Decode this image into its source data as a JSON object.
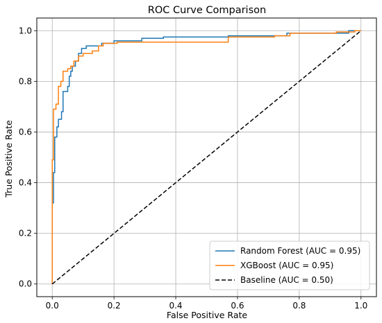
{
  "chart_data": {
    "type": "line",
    "title": "ROC Curve Comparison",
    "xlabel": "False Positive Rate",
    "ylabel": "True Positive Rate",
    "xlim": [
      -0.05,
      1.05
    ],
    "ylim": [
      -0.05,
      1.05
    ],
    "x_ticks": [
      "0.0",
      "0.2",
      "0.4",
      "0.6",
      "0.8",
      "1.0"
    ],
    "y_ticks": [
      "0.0",
      "0.2",
      "0.4",
      "0.6",
      "0.8",
      "1.0"
    ],
    "grid": true,
    "legend_position": "lower-right",
    "series": [
      {
        "name": "Random Forest (AUC = 0.95)",
        "color": "#1f77b4",
        "style": "solid",
        "points": [
          [
            0.0,
            0.0
          ],
          [
            0.0,
            0.32
          ],
          [
            0.004,
            0.32
          ],
          [
            0.004,
            0.44
          ],
          [
            0.008,
            0.44
          ],
          [
            0.008,
            0.58
          ],
          [
            0.015,
            0.58
          ],
          [
            0.015,
            0.62
          ],
          [
            0.02,
            0.62
          ],
          [
            0.02,
            0.65
          ],
          [
            0.03,
            0.65
          ],
          [
            0.03,
            0.68
          ],
          [
            0.035,
            0.68
          ],
          [
            0.035,
            0.76
          ],
          [
            0.05,
            0.76
          ],
          [
            0.05,
            0.78
          ],
          [
            0.055,
            0.78
          ],
          [
            0.055,
            0.82
          ],
          [
            0.06,
            0.82
          ],
          [
            0.06,
            0.84
          ],
          [
            0.065,
            0.84
          ],
          [
            0.065,
            0.86
          ],
          [
            0.075,
            0.86
          ],
          [
            0.075,
            0.88
          ],
          [
            0.085,
            0.88
          ],
          [
            0.085,
            0.91
          ],
          [
            0.095,
            0.91
          ],
          [
            0.095,
            0.93
          ],
          [
            0.11,
            0.93
          ],
          [
            0.11,
            0.94
          ],
          [
            0.16,
            0.94
          ],
          [
            0.16,
            0.95
          ],
          [
            0.2,
            0.95
          ],
          [
            0.2,
            0.96
          ],
          [
            0.29,
            0.96
          ],
          [
            0.29,
            0.97
          ],
          [
            0.36,
            0.97
          ],
          [
            0.36,
            0.975
          ],
          [
            0.57,
            0.975
          ],
          [
            0.57,
            0.98
          ],
          [
            0.69,
            0.98
          ],
          [
            0.69,
            0.98
          ],
          [
            0.76,
            0.98
          ],
          [
            0.76,
            0.99
          ],
          [
            0.96,
            0.99
          ],
          [
            0.96,
            1.0
          ],
          [
            1.0,
            1.0
          ]
        ]
      },
      {
        "name": "XGBoost (AUC = 0.95)",
        "color": "#ff7f0e",
        "style": "solid",
        "points": [
          [
            0.0,
            0.0
          ],
          [
            0.0,
            0.49
          ],
          [
            0.004,
            0.49
          ],
          [
            0.004,
            0.69
          ],
          [
            0.012,
            0.69
          ],
          [
            0.012,
            0.71
          ],
          [
            0.02,
            0.71
          ],
          [
            0.02,
            0.78
          ],
          [
            0.028,
            0.78
          ],
          [
            0.028,
            0.8
          ],
          [
            0.035,
            0.8
          ],
          [
            0.035,
            0.84
          ],
          [
            0.05,
            0.84
          ],
          [
            0.05,
            0.85
          ],
          [
            0.06,
            0.85
          ],
          [
            0.06,
            0.86
          ],
          [
            0.07,
            0.86
          ],
          [
            0.07,
            0.88
          ],
          [
            0.085,
            0.88
          ],
          [
            0.085,
            0.9
          ],
          [
            0.1,
            0.9
          ],
          [
            0.1,
            0.91
          ],
          [
            0.13,
            0.91
          ],
          [
            0.13,
            0.92
          ],
          [
            0.15,
            0.92
          ],
          [
            0.15,
            0.94
          ],
          [
            0.165,
            0.94
          ],
          [
            0.165,
            0.95
          ],
          [
            0.21,
            0.95
          ],
          [
            0.21,
            0.955
          ],
          [
            0.57,
            0.955
          ],
          [
            0.57,
            0.975
          ],
          [
            0.72,
            0.975
          ],
          [
            0.72,
            0.98
          ],
          [
            0.77,
            0.98
          ],
          [
            0.77,
            0.99
          ],
          [
            0.92,
            0.99
          ],
          [
            0.92,
            0.995
          ],
          [
            0.98,
            0.995
          ],
          [
            0.98,
            1.0
          ],
          [
            1.0,
            1.0
          ]
        ]
      },
      {
        "name": "Baseline (AUC = 0.50)",
        "color": "#000000",
        "style": "dashed",
        "points": [
          [
            0.0,
            0.0
          ],
          [
            1.0,
            1.0
          ]
        ]
      }
    ]
  }
}
